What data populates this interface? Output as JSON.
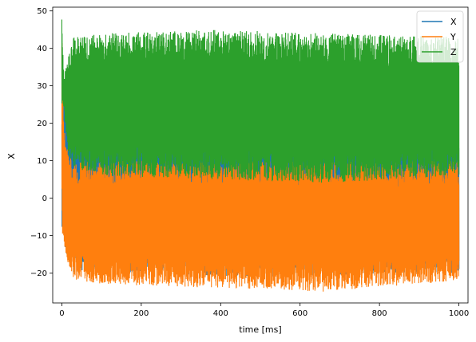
{
  "chart_data": {
    "type": "line",
    "title": "",
    "xlabel": "time [ms]",
    "ylabel": "X",
    "xlim": [
      -23,
      1023
    ],
    "ylim": [
      -28,
      51
    ],
    "xticks": [
      0,
      200,
      400,
      600,
      800,
      1000
    ],
    "yticks": [
      -20,
      -10,
      0,
      10,
      20,
      30,
      40,
      50
    ],
    "grid": false,
    "legend_position": "top-right",
    "series": [
      {
        "name": "X",
        "color": "#1f77b4",
        "x": [
          0,
          2,
          4,
          6,
          8,
          10,
          15,
          20
        ],
        "y": [
          0,
          8,
          14,
          18,
          20,
          16,
          10,
          6
        ],
        "x_range": [
          0,
          1000
        ],
        "envelope": [
          {
            "x": 0,
            "low": -9,
            "high": 27
          },
          {
            "x": 20,
            "low": -20,
            "high": 30
          },
          {
            "x": 100,
            "low": -20,
            "high": 22
          },
          {
            "x": 500,
            "low": -21,
            "high": 23
          },
          {
            "x": 1000,
            "low": -20,
            "high": 22
          }
        ]
      },
      {
        "name": "Y",
        "color": "#ff7f0e",
        "x_range": [
          0,
          1000
        ],
        "envelope": [
          {
            "x": 0,
            "low": -9,
            "high": 45
          },
          {
            "x": 5,
            "low": -12,
            "high": 20
          },
          {
            "x": 15,
            "low": -18,
            "high": 12
          },
          {
            "x": 30,
            "low": -22,
            "high": 10
          },
          {
            "x": 100,
            "low": -23,
            "high": 10
          },
          {
            "x": 400,
            "low": -24,
            "high": 10
          },
          {
            "x": 660,
            "low": -25,
            "high": 10
          },
          {
            "x": 1000,
            "low": -22,
            "high": 10
          }
        ]
      },
      {
        "name": "Z",
        "color": "#2ca02c",
        "x_range": [
          0,
          1000
        ],
        "envelope": [
          {
            "x": 0,
            "low": 24,
            "high": 48
          },
          {
            "x": 5,
            "low": 24,
            "high": 32
          },
          {
            "x": 15,
            "low": 12,
            "high": 38
          },
          {
            "x": 30,
            "low": 8,
            "high": 43
          },
          {
            "x": 100,
            "low": 6,
            "high": 44
          },
          {
            "x": 400,
            "low": 5,
            "high": 45
          },
          {
            "x": 660,
            "low": 4,
            "high": 44
          },
          {
            "x": 1000,
            "low": 6,
            "high": 43
          }
        ]
      }
    ]
  }
}
